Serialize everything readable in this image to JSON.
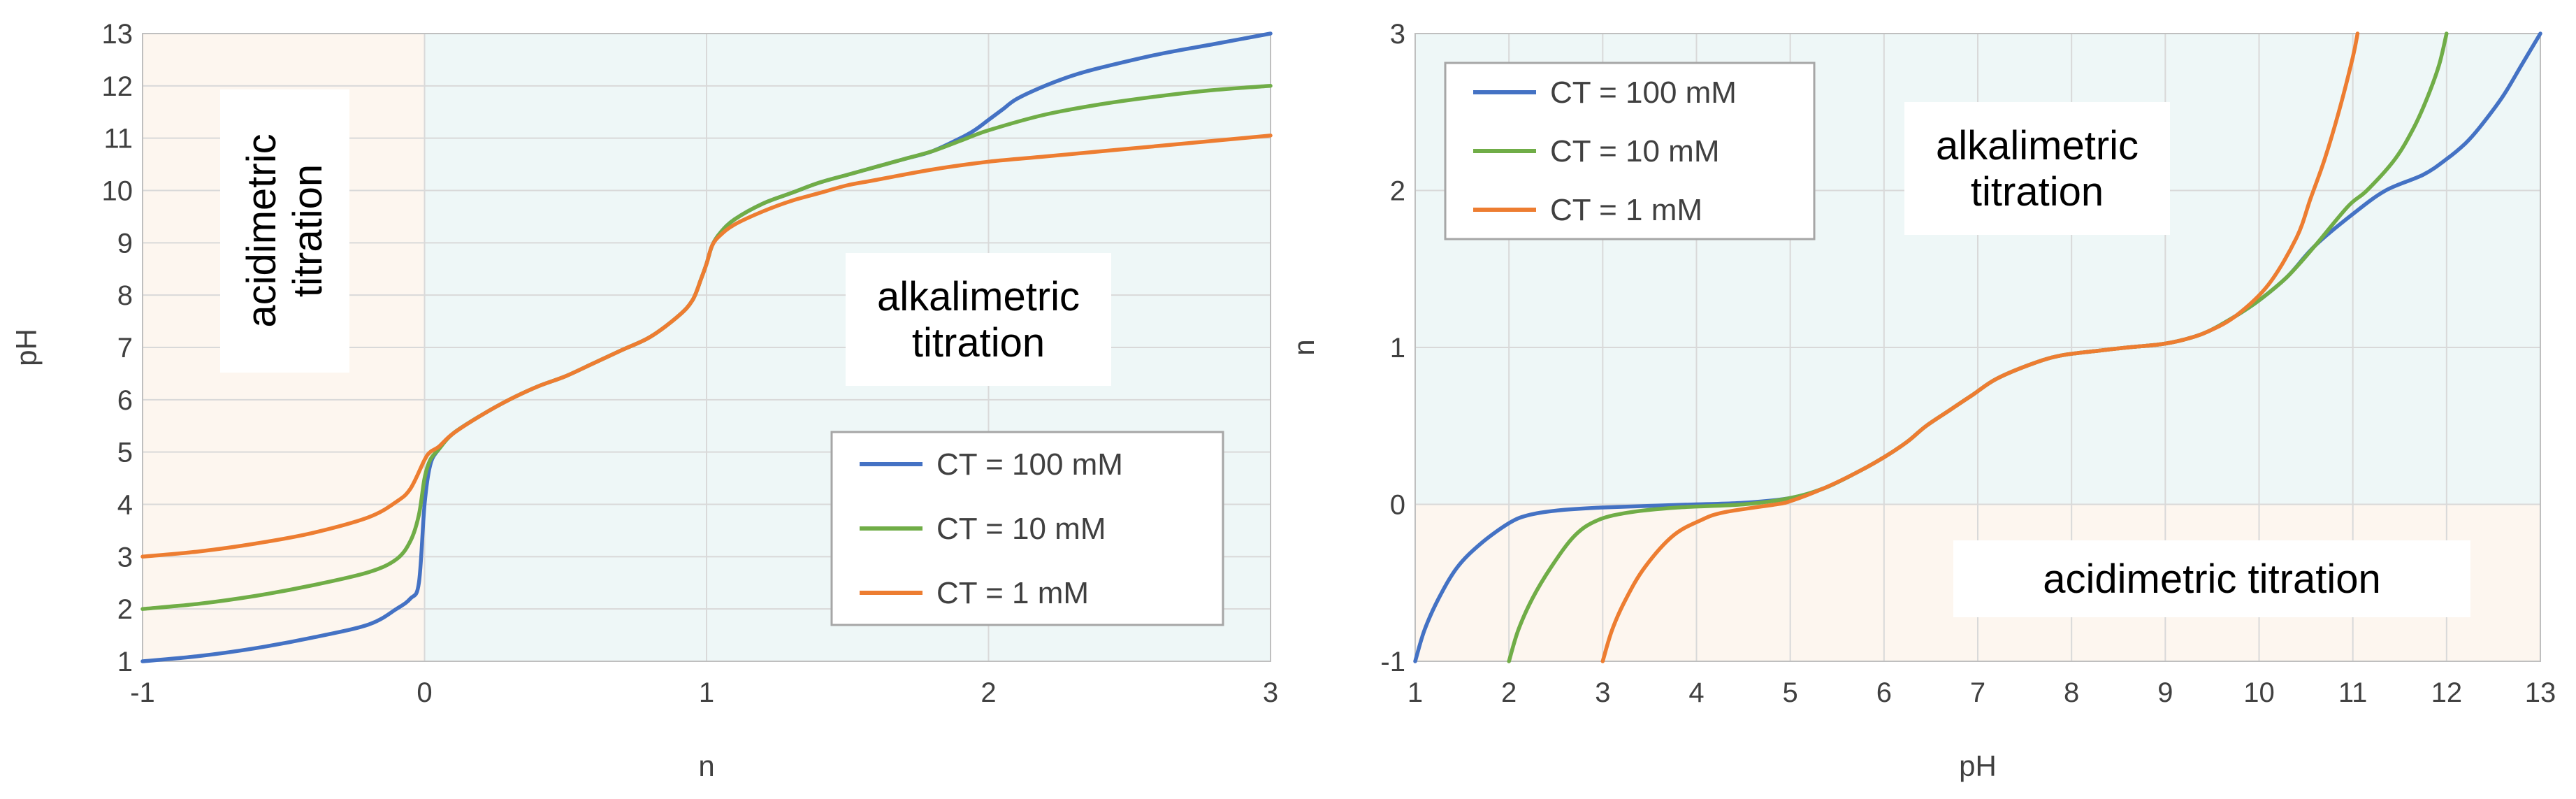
{
  "chart_data": [
    {
      "type": "line",
      "title": "",
      "xlabel": "n",
      "ylabel": "pH",
      "xlim": [
        -1,
        3
      ],
      "ylim": [
        1,
        13
      ],
      "xticks": [
        -1,
        0,
        1,
        2,
        3
      ],
      "yticks": [
        1,
        2,
        3,
        4,
        5,
        6,
        7,
        8,
        9,
        10,
        11,
        12,
        13
      ],
      "grid": true,
      "legend_position": "bottom-right",
      "regions": [
        {
          "name": "acidimetric-region",
          "x_range": [
            -1,
            0
          ],
          "color": "#fdf6ef"
        },
        {
          "name": "alkalimetric-region",
          "x_range": [
            0,
            3
          ],
          "color": "#eef7f7"
        }
      ],
      "annotations": [
        {
          "name": "acidimetric-label",
          "lines": [
            "acidimetric",
            "titration"
          ],
          "orientation": "vertical"
        },
        {
          "name": "alkalimetric-label",
          "lines": [
            "alkalimetric",
            "titration"
          ],
          "orientation": "horizontal"
        }
      ],
      "series": [
        {
          "name": "CT = 100 mM",
          "color": "#4472c4",
          "x": [
            -1,
            -0.8,
            -0.6,
            -0.4,
            -0.2,
            -0.1,
            -0.05,
            -0.02,
            0,
            0.02,
            0.05,
            0.1,
            0.2,
            0.3,
            0.4,
            0.5,
            0.6,
            0.7,
            0.8,
            0.9,
            0.95,
            0.98,
            1,
            1.02,
            1.05,
            1.1,
            1.2,
            1.3,
            1.4,
            1.5,
            1.6,
            1.7,
            1.8,
            1.9,
            1.95,
            2,
            2.05,
            2.1,
            2.2,
            2.3,
            2.4,
            2.6,
            2.8,
            3
          ],
          "y": [
            1.0,
            1.1,
            1.25,
            1.45,
            1.7,
            2.0,
            2.2,
            2.5,
            4.0,
            4.75,
            5.05,
            5.35,
            5.7,
            6.0,
            6.25,
            6.45,
            6.7,
            6.95,
            7.2,
            7.6,
            7.9,
            8.3,
            8.6,
            8.95,
            9.2,
            9.45,
            9.75,
            9.95,
            10.15,
            10.3,
            10.45,
            10.6,
            10.75,
            11.0,
            11.15,
            11.35,
            11.55,
            11.75,
            12.0,
            12.2,
            12.35,
            12.6,
            12.8,
            13.0
          ]
        },
        {
          "name": "CT = 10 mM",
          "color": "#70ad47",
          "x": [
            -1,
            -0.8,
            -0.6,
            -0.4,
            -0.2,
            -0.1,
            -0.05,
            -0.02,
            0,
            0.02,
            0.05,
            0.1,
            0.2,
            0.3,
            0.4,
            0.5,
            0.6,
            0.7,
            0.8,
            0.9,
            0.95,
            0.98,
            1,
            1.02,
            1.05,
            1.1,
            1.2,
            1.3,
            1.4,
            1.5,
            1.6,
            1.7,
            1.8,
            1.9,
            2,
            2.2,
            2.4,
            2.6,
            2.8,
            3
          ],
          "y": [
            2.0,
            2.1,
            2.25,
            2.45,
            2.7,
            2.95,
            3.3,
            3.8,
            4.5,
            4.85,
            5.05,
            5.35,
            5.7,
            6.0,
            6.25,
            6.45,
            6.7,
            6.95,
            7.2,
            7.6,
            7.9,
            8.3,
            8.6,
            8.95,
            9.2,
            9.45,
            9.75,
            9.95,
            10.15,
            10.3,
            10.45,
            10.6,
            10.75,
            10.95,
            11.15,
            11.45,
            11.65,
            11.8,
            11.92,
            12.0
          ]
        },
        {
          "name": "CT = 1 mM",
          "color": "#ed7d31",
          "x": [
            -1,
            -0.8,
            -0.6,
            -0.4,
            -0.2,
            -0.1,
            -0.05,
            0,
            0.02,
            0.05,
            0.1,
            0.2,
            0.3,
            0.4,
            0.5,
            0.6,
            0.7,
            0.8,
            0.9,
            0.95,
            0.98,
            1,
            1.02,
            1.05,
            1.1,
            1.2,
            1.3,
            1.4,
            1.5,
            1.6,
            1.8,
            2,
            2.2,
            2.4,
            2.6,
            2.8,
            3
          ],
          "y": [
            3.0,
            3.1,
            3.25,
            3.45,
            3.75,
            4.05,
            4.3,
            4.85,
            5.0,
            5.1,
            5.35,
            5.7,
            6.0,
            6.25,
            6.45,
            6.7,
            6.95,
            7.2,
            7.6,
            7.9,
            8.3,
            8.6,
            8.95,
            9.15,
            9.35,
            9.6,
            9.8,
            9.95,
            10.1,
            10.2,
            10.4,
            10.55,
            10.65,
            10.75,
            10.85,
            10.95,
            11.05
          ]
        }
      ]
    },
    {
      "type": "line",
      "title": "",
      "xlabel": "pH",
      "ylabel": "n",
      "xlim": [
        1,
        13
      ],
      "ylim": [
        -1,
        3
      ],
      "xticks": [
        1,
        2,
        3,
        4,
        5,
        6,
        7,
        8,
        9,
        10,
        11,
        12,
        13
      ],
      "yticks": [
        -1,
        0,
        1,
        2,
        3
      ],
      "grid": true,
      "legend_position": "top-left",
      "regions": [
        {
          "name": "alkalimetric-region",
          "y_range": [
            0,
            3
          ],
          "color": "#eef7f7"
        },
        {
          "name": "acidimetric-region",
          "y_range": [
            -1,
            0
          ],
          "color": "#fdf6ef"
        }
      ],
      "annotations": [
        {
          "name": "alkalimetric-label",
          "lines": [
            "alkalimetric",
            "titration"
          ],
          "orientation": "horizontal"
        },
        {
          "name": "acidimetric-label",
          "lines": [
            "acidimetric titration"
          ],
          "orientation": "horizontal"
        }
      ],
      "series": [
        {
          "name": "CT = 100 mM",
          "color": "#4472c4",
          "x": [
            1.0,
            1.1,
            1.25,
            1.45,
            1.7,
            2.0,
            2.2,
            2.5,
            3.0,
            4.0,
            4.5,
            5.0,
            5.35,
            5.7,
            6.0,
            6.25,
            6.45,
            6.7,
            6.95,
            7.2,
            7.6,
            7.9,
            8.3,
            8.6,
            8.95,
            9.2,
            9.45,
            9.75,
            10.0,
            10.3,
            10.6,
            11.0,
            11.35,
            11.75,
            12.0,
            12.2,
            12.35,
            12.6,
            12.8,
            13.0
          ],
          "y": [
            -1,
            -0.8,
            -0.6,
            -0.4,
            -0.25,
            -0.12,
            -0.07,
            -0.04,
            -0.02,
            0,
            0.01,
            0.04,
            0.1,
            0.2,
            0.3,
            0.4,
            0.5,
            0.6,
            0.7,
            0.8,
            0.9,
            0.95,
            0.98,
            1,
            1.02,
            1.05,
            1.1,
            1.2,
            1.3,
            1.45,
            1.65,
            1.85,
            2.0,
            2.1,
            2.2,
            2.3,
            2.4,
            2.6,
            2.8,
            3.0
          ]
        },
        {
          "name": "CT = 10 mM",
          "color": "#70ad47",
          "x": [
            2.0,
            2.1,
            2.25,
            2.45,
            2.7,
            2.95,
            3.3,
            3.8,
            4.5,
            5.0,
            5.35,
            5.7,
            6.0,
            6.25,
            6.45,
            6.7,
            6.95,
            7.2,
            7.6,
            7.9,
            8.3,
            8.6,
            8.95,
            9.2,
            9.45,
            9.75,
            10.0,
            10.3,
            10.6,
            10.95,
            11.15,
            11.45,
            11.65,
            11.8,
            11.92,
            12.0
          ],
          "y": [
            -1,
            -0.8,
            -0.6,
            -0.4,
            -0.2,
            -0.1,
            -0.05,
            -0.02,
            0,
            0.04,
            0.1,
            0.2,
            0.3,
            0.4,
            0.5,
            0.6,
            0.7,
            0.8,
            0.9,
            0.95,
            0.98,
            1,
            1.02,
            1.05,
            1.1,
            1.2,
            1.3,
            1.45,
            1.65,
            1.9,
            2.0,
            2.2,
            2.4,
            2.6,
            2.8,
            3.0
          ]
        },
        {
          "name": "CT = 1 mM",
          "color": "#ed7d31",
          "x": [
            3.0,
            3.1,
            3.25,
            3.45,
            3.75,
            4.05,
            4.3,
            4.85,
            5.0,
            5.35,
            5.7,
            6.0,
            6.25,
            6.45,
            6.7,
            6.95,
            7.2,
            7.6,
            7.9,
            8.3,
            8.6,
            8.95,
            9.2,
            9.45,
            9.75,
            10.1,
            10.4,
            10.55,
            10.7,
            10.85,
            11.0,
            11.05
          ],
          "y": [
            -1,
            -0.8,
            -0.6,
            -0.4,
            -0.2,
            -0.1,
            -0.05,
            0,
            0.02,
            0.1,
            0.2,
            0.3,
            0.4,
            0.5,
            0.6,
            0.7,
            0.8,
            0.9,
            0.95,
            0.98,
            1,
            1.02,
            1.05,
            1.1,
            1.2,
            1.4,
            1.7,
            1.95,
            2.2,
            2.5,
            2.85,
            3.0
          ]
        }
      ]
    }
  ]
}
